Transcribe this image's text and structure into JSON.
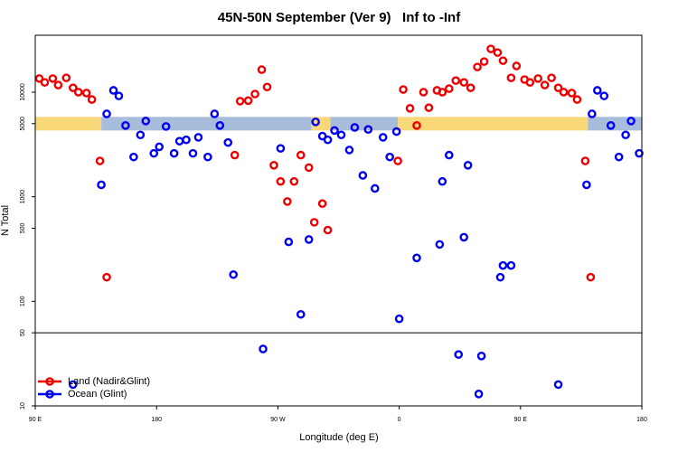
{
  "chart_data": {
    "type": "scatter",
    "title": "45N-50N September (Ver 9)   Inf to -Inf",
    "x_label": "Longitude (deg E)",
    "y_label": "N Total",
    "xlim": [
      -270,
      180
    ],
    "xticks": [
      {
        "value": -270,
        "label": "90 E"
      },
      {
        "value": -180,
        "label": "180"
      },
      {
        "value": -90,
        "label": "90 W"
      },
      0,
      {
        "value": 90,
        "label": "90 E"
      },
      180
    ],
    "ylim": [
      10,
      35000
    ],
    "log_y": true,
    "yticks": [
      10,
      50,
      100,
      500,
      1000,
      5000,
      10000
    ],
    "hline": 50,
    "legend_position": "bottom-left",
    "band": {
      "y": [
        4300,
        5800
      ],
      "segments": [
        {
          "start": -270,
          "end": -221,
          "color": "#f8d878"
        },
        {
          "start": -221,
          "end": -65,
          "color": "#a8bcdc"
        },
        {
          "start": -65,
          "end": -51,
          "color": "#f8d878"
        },
        {
          "start": -51,
          "end": -1,
          "color": "#a8bcdc"
        },
        {
          "start": -1,
          "end": 140,
          "color": "#f8d878"
        },
        {
          "start": 140,
          "end": 180,
          "color": "#a8bcdc"
        }
      ]
    },
    "series": [
      {
        "name": "Land (Nadir&Glint)",
        "color": "#ee0000",
        "x": [
          -267,
          -263,
          -257,
          -253,
          -247,
          -242,
          -238,
          -232,
          -228,
          -222,
          -217,
          -122,
          -118,
          -112,
          -107,
          -102,
          -98,
          -93,
          -88,
          -83,
          -78,
          -73,
          -67,
          -63,
          -57,
          -53,
          -1,
          3,
          8,
          13,
          18,
          22,
          28,
          32,
          37,
          42,
          48,
          53,
          58,
          63,
          68,
          73,
          77,
          83,
          87,
          93,
          97,
          103,
          108,
          113,
          118,
          122,
          128,
          132,
          138,
          142
        ],
        "values": [
          13500,
          12400,
          13500,
          11700,
          13700,
          11000,
          10000,
          9800,
          8500,
          2200,
          170,
          2500,
          8200,
          8300,
          9600,
          16400,
          11200,
          2000,
          1400,
          900,
          1400,
          2500,
          1900,
          570,
          860,
          480,
          2200,
          10600,
          7000,
          4800,
          10000,
          7100,
          10400,
          10000,
          10800,
          12900,
          12400,
          11000,
          17400,
          19600,
          25900,
          23900,
          20000,
          13700,
          17800,
          13200,
          12400,
          13500,
          11700,
          13700,
          11000,
          10000,
          9800,
          8500,
          2200,
          170
        ]
      },
      {
        "name": "Ocean (Glint)",
        "color": "#0000ee",
        "x": [
          -242,
          -221,
          -217,
          -212,
          -208,
          -203,
          -197,
          -192,
          -188,
          -182,
          -178,
          -173,
          -167,
          -163,
          -158,
          -153,
          -149,
          -142,
          -137,
          -133,
          -127,
          -123,
          -101,
          -88,
          -82,
          -73,
          -67,
          -62,
          -57,
          -53,
          -48,
          -43,
          -37,
          -33,
          -27,
          -23,
          -18,
          -12,
          -7,
          -2,
          0,
          13,
          30,
          32,
          37,
          44,
          48,
          51,
          59,
          61,
          75,
          77,
          83,
          118,
          139,
          143,
          147,
          152,
          157,
          163,
          168,
          172,
          178
        ],
        "values": [
          16,
          1300,
          6200,
          10400,
          9200,
          4800,
          2400,
          3900,
          5300,
          2600,
          3000,
          4700,
          2600,
          3400,
          3500,
          2600,
          3700,
          2400,
          6200,
          4800,
          3300,
          180,
          35,
          2900,
          370,
          75,
          390,
          5200,
          3800,
          3500,
          4300,
          3900,
          2800,
          4600,
          1600,
          4400,
          1200,
          3700,
          2400,
          4200,
          68,
          260,
          350,
          1400,
          2500,
          31,
          410,
          2000,
          13,
          30,
          170,
          220,
          220,
          16,
          1300,
          6200,
          10400,
          9200,
          4800,
          2400,
          3900,
          5300,
          2600
        ]
      }
    ]
  }
}
